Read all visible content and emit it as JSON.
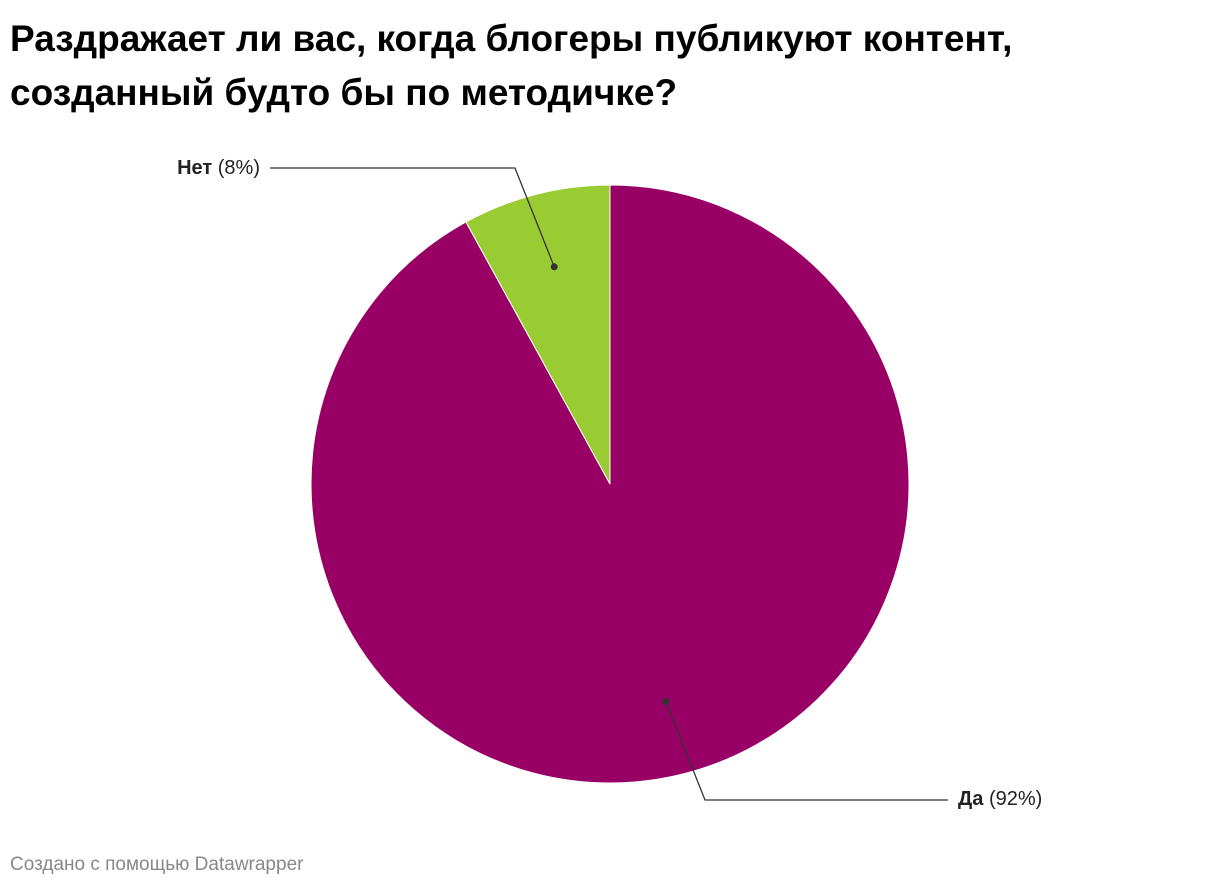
{
  "chart_data": {
    "type": "pie",
    "title": "Раздражает ли вас, когда блогеры публикуют контент,\nсозданный будто бы по методичке?",
    "categories": [
      "Да",
      "Нет"
    ],
    "values": [
      92,
      8
    ],
    "value_labels": [
      "(92%)",
      "(8%)"
    ],
    "colors": [
      "#990066",
      "#99cc33"
    ],
    "footer": "Создано с помощью Datawrapper"
  }
}
